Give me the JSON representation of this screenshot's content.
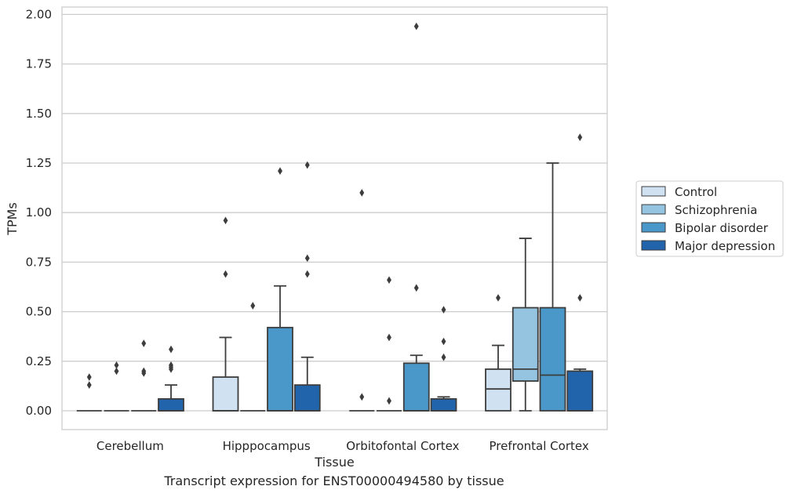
{
  "chart_data": {
    "type": "box",
    "xlabel": "Tissue",
    "ylabel": "TPMs",
    "ylim": [
      -0.1,
      2.03
    ],
    "yticks": [
      "0.00",
      "0.25",
      "0.50",
      "0.75",
      "1.00",
      "1.25",
      "1.50",
      "1.75",
      "2.00"
    ],
    "grid": "horizontal",
    "legend_position": "right",
    "categories": [
      "Cerebellum",
      "Hipppocampus",
      "Orbitofontal Cortex",
      "Prefrontal Cortex"
    ],
    "series": [
      {
        "name": "Control",
        "color": "#d0e1f2",
        "boxes": [
          {
            "min": 0,
            "q1": 0,
            "median": 0,
            "q3": 0,
            "max": 0,
            "outliers": [
              0.17,
              0.13
            ]
          },
          {
            "min": 0,
            "q1": 0,
            "median": 0,
            "q3": 0.17,
            "max": 0.37,
            "outliers": [
              0.96,
              0.69
            ]
          },
          {
            "min": 0,
            "q1": 0,
            "median": 0,
            "q3": 0,
            "max": 0,
            "outliers": [
              1.1,
              0.07
            ]
          },
          {
            "min": 0,
            "q1": 0,
            "median": 0.11,
            "q3": 0.21,
            "max": 0.33,
            "outliers": [
              0.57
            ]
          }
        ]
      },
      {
        "name": "Schizophrenia",
        "color": "#94c4df",
        "boxes": [
          {
            "min": 0,
            "q1": 0,
            "median": 0,
            "q3": 0,
            "max": 0,
            "outliers": [
              0.23,
              0.2
            ]
          },
          {
            "min": 0,
            "q1": 0,
            "median": 0,
            "q3": 0,
            "max": 0,
            "outliers": [
              0.53
            ]
          },
          {
            "min": 0,
            "q1": 0,
            "median": 0,
            "q3": 0,
            "max": 0,
            "outliers": [
              0.66,
              0.37,
              0.05
            ]
          },
          {
            "min": 0,
            "q1": 0.15,
            "median": 0.21,
            "q3": 0.52,
            "max": 0.87,
            "outliers": []
          }
        ]
      },
      {
        "name": "Bipolar disorder",
        "color": "#4a98c9",
        "boxes": [
          {
            "min": 0,
            "q1": 0,
            "median": 0,
            "q3": 0,
            "max": 0,
            "outliers": [
              0.34,
              0.2,
              0.19
            ]
          },
          {
            "min": 0,
            "q1": 0,
            "median": 0,
            "q3": 0.42,
            "max": 0.63,
            "outliers": [
              1.21
            ]
          },
          {
            "min": 0,
            "q1": 0,
            "median": 0,
            "q3": 0.24,
            "max": 0.28,
            "outliers": [
              1.94,
              0.62
            ]
          },
          {
            "min": 0,
            "q1": 0,
            "median": 0.18,
            "q3": 0.52,
            "max": 1.25,
            "outliers": []
          }
        ]
      },
      {
        "name": "Major depression",
        "color": "#2164ab",
        "boxes": [
          {
            "min": 0,
            "q1": 0,
            "median": 0,
            "q3": 0.06,
            "max": 0.13,
            "outliers": [
              0.31,
              0.23,
              0.22,
              0.21
            ]
          },
          {
            "min": 0,
            "q1": 0,
            "median": 0,
            "q3": 0.13,
            "max": 0.27,
            "outliers": [
              1.24,
              0.77,
              0.69
            ]
          },
          {
            "min": 0,
            "q1": 0,
            "median": 0,
            "q3": 0.06,
            "max": 0.07,
            "outliers": [
              0.51,
              0.35,
              0.27
            ]
          },
          {
            "min": 0,
            "q1": 0,
            "median": 0,
            "q3": 0.2,
            "max": 0.21,
            "outliers": [
              1.38,
              0.57
            ]
          }
        ]
      }
    ]
  },
  "caption": "Transcript expression for ENST00000494580 by tissue"
}
